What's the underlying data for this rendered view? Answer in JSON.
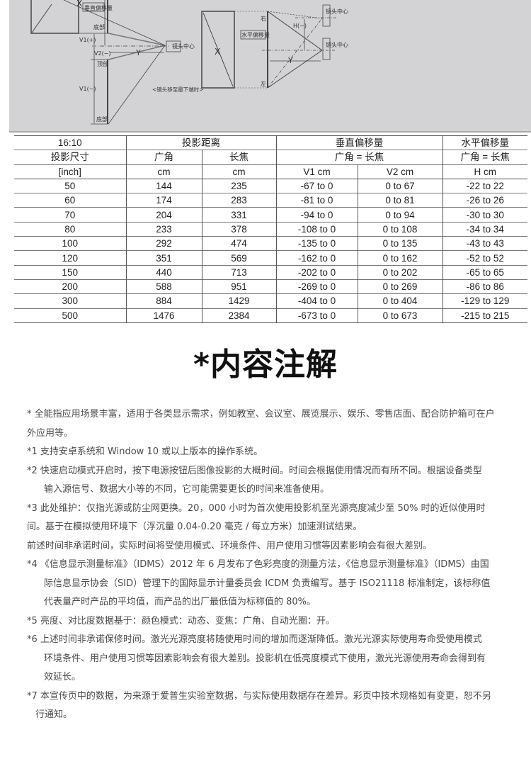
{
  "diagram": {
    "left": {
      "screen_label": "X",
      "vertical_offset_label": "垂直偏移量",
      "bottom_label_top": "底部",
      "v1_plus": "V1(+)",
      "v2_minus": "V2(−)",
      "top_label": "顶部",
      "v1_minus": "V1(−)",
      "bottom_label": "底部",
      "distance_label": "Y",
      "lens_center": "镜头中心",
      "caption": "<镜头移至最下端时>"
    },
    "right": {
      "screen_label": "X",
      "horizontal_offset_label": "水平偏移量",
      "right_label": "右",
      "left_label": "左",
      "h_minus": "H(−)",
      "distance_label": "Y",
      "lens_center_top": "镜头中心",
      "lens_center_bottom": "镜头中心"
    },
    "background": "#d3d3d5"
  },
  "table": {
    "header_row1": [
      "16:10",
      "投影距离",
      "垂直偏移量",
      "水平偏移量"
    ],
    "header_row2": [
      "投影尺寸",
      "广角",
      "长焦",
      "广角 = 长焦",
      "广角 = 长焦"
    ],
    "header_row3": [
      "[inch]",
      "cm",
      "cm",
      "V1 cm",
      "V2 cm",
      "H cm"
    ],
    "rows": [
      [
        "50",
        "144",
        "235",
        "-67 to 0",
        "0 to 67",
        "-22 to 22"
      ],
      [
        "60",
        "174",
        "283",
        "-81 to 0",
        "0 to 81",
        "-26 to 26"
      ],
      [
        "70",
        "204",
        "331",
        "-94 to 0",
        "0 to 94",
        "-30 to 30"
      ],
      [
        "80",
        "233",
        "378",
        "-108 to 0",
        "0 to 108",
        "-34 to 34"
      ],
      [
        "100",
        "292",
        "474",
        "-135 to 0",
        "0 to 135",
        "-43 to 43"
      ],
      [
        "120",
        "351",
        "569",
        "-162 to 0",
        "0 to 162",
        "-52 to 52"
      ],
      [
        "150",
        "440",
        "713",
        "-202 to 0",
        "0 to 202",
        "-65 to 65"
      ],
      [
        "200",
        "588",
        "951",
        "-269 to 0",
        "0 to 269",
        "-86 to 86"
      ],
      [
        "300",
        "884",
        "1429",
        "-404 to 0",
        "0 to 404",
        "-129 to 129"
      ],
      [
        "500",
        "1476",
        "2384",
        "-673 to 0",
        "0 to 673",
        "-215 to 215"
      ]
    ]
  },
  "title": "*内容注解",
  "notes": [
    {
      "lines": [
        "* 全能指应用场景丰富，适用于各类显示需求，例如教室、会议室、展览展示、娱乐、零售店面、配合防护箱可在户",
        "外应用等。"
      ],
      "indent": "none"
    },
    {
      "lines": [
        "*1 支持安卓系统和 Window 10 或以上版本的操作系统。"
      ],
      "indent": "none"
    },
    {
      "lines": [
        "*2 快速启动模式开启时，按下电源按钮后图像投影的大概时间。时间会根据使用情况而有所不同。根据设备类型",
        "输入源信号、数据大小等的不同，它可能需要更长的时间来准备使用。"
      ],
      "indent": "full"
    },
    {
      "lines": [
        "*3  此处维护：仅指光源或防尘网更换。20，000 小时为首次使用投影机至光源亮度减少至 50% 时的近似使用时",
        "间。基于在模拟使用环境下（浮沉量 0.04-0.20 毫克 / 每立方米）加速测试结果。",
        "前述时间非承诺时间，实际时间将受使用模式、环境条件、用户使用习惯等因素影响会有很大差别。"
      ],
      "indent": "none"
    },
    {
      "lines": [
        "*4 《信息显示测量标准》（IDMS）2012 年 6 月发布了色彩亮度的测量方法，《信息显示测量标准》（IDMS）由国",
        "际信息显示协会（SID）管理下的国际显示计量委员会 ICDM 负责编写。基于 ISO21118 标准制定，该标称值",
        "代表量产时产品的平均值，而产品的出厂最低值为标称值的 80%。"
      ],
      "indent": "full"
    },
    {
      "lines": [
        "*5 亮度、对比度数据基于：颜色模式：动态、变焦：广角、自动光圈：开。"
      ],
      "indent": "none"
    },
    {
      "lines": [
        "*6 上述时间非承诺保修时间。激光光源亮度将随使用时间的增加而逐渐降低。激光光源实际使用寿命受使用模式",
        "环境条件、用户使用习惯等因素影响会有很大差别。投影机在低亮度模式下使用，激光光源使用寿命会得到有",
        "效延长。"
      ],
      "indent": "full"
    },
    {
      "lines": [
        "*7 本宣传页中的数据，为来源于爱普生实验室数据，与实际使用数据存在差异。彩页中技术规格如有变更，恕不另",
        "行通知。"
      ],
      "indent": "half"
    }
  ]
}
